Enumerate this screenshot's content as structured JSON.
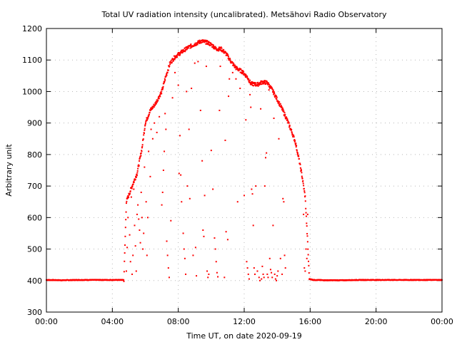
{
  "chart_data": {
    "type": "scatter",
    "title": "Total UV radiation intensity (uncalibrated). Metsähovi Radio Observatory",
    "xlabel": "Time UT, on date 2020-09-19",
    "ylabel": "Arbitrary unit",
    "xlim": [
      0,
      24
    ],
    "ylim": [
      300,
      1200
    ],
    "x_ticks": [
      {
        "value": 0,
        "label": "00:00"
      },
      {
        "value": 4,
        "label": "04:00"
      },
      {
        "value": 8,
        "label": "08:00"
      },
      {
        "value": 12,
        "label": "12:00"
      },
      {
        "value": 16,
        "label": "16:00"
      },
      {
        "value": 20,
        "label": "20:00"
      },
      {
        "value": 24,
        "label": "00:00"
      }
    ],
    "y_ticks": [
      300,
      400,
      500,
      600,
      700,
      800,
      900,
      1000,
      1100,
      1200
    ],
    "grid": true,
    "marker_color": "#ff0000",
    "envelope": [
      {
        "x": 0.0,
        "y": 402
      },
      {
        "x": 1.0,
        "y": 401
      },
      {
        "x": 2.0,
        "y": 402
      },
      {
        "x": 3.0,
        "y": 402
      },
      {
        "x": 4.0,
        "y": 402
      },
      {
        "x": 4.7,
        "y": 402
      },
      {
        "x": 4.85,
        "y": 650
      },
      {
        "x": 5.2,
        "y": 700
      },
      {
        "x": 5.5,
        "y": 740
      },
      {
        "x": 5.8,
        "y": 820
      },
      {
        "x": 6.0,
        "y": 900
      },
      {
        "x": 6.3,
        "y": 940
      },
      {
        "x": 6.6,
        "y": 960
      },
      {
        "x": 7.0,
        "y": 1000
      },
      {
        "x": 7.2,
        "y": 1040
      },
      {
        "x": 7.5,
        "y": 1090
      },
      {
        "x": 7.8,
        "y": 1110
      },
      {
        "x": 8.2,
        "y": 1125
      },
      {
        "x": 8.6,
        "y": 1140
      },
      {
        "x": 9.0,
        "y": 1150
      },
      {
        "x": 9.4,
        "y": 1160
      },
      {
        "x": 9.8,
        "y": 1155
      },
      {
        "x": 10.1,
        "y": 1145
      },
      {
        "x": 10.3,
        "y": 1135
      },
      {
        "x": 10.6,
        "y": 1135
      },
      {
        "x": 10.9,
        "y": 1120
      },
      {
        "x": 11.2,
        "y": 1095
      },
      {
        "x": 11.5,
        "y": 1075
      },
      {
        "x": 11.9,
        "y": 1062
      },
      {
        "x": 12.2,
        "y": 1045
      },
      {
        "x": 12.4,
        "y": 1025
      },
      {
        "x": 12.8,
        "y": 1022
      },
      {
        "x": 13.1,
        "y": 1030
      },
      {
        "x": 13.4,
        "y": 1028
      },
      {
        "x": 13.7,
        "y": 1005
      },
      {
        "x": 14.0,
        "y": 975
      },
      {
        "x": 14.3,
        "y": 945
      },
      {
        "x": 14.6,
        "y": 910
      },
      {
        "x": 14.9,
        "y": 870
      },
      {
        "x": 15.1,
        "y": 840
      },
      {
        "x": 15.3,
        "y": 790
      },
      {
        "x": 15.5,
        "y": 735
      },
      {
        "x": 15.7,
        "y": 665
      },
      {
        "x": 15.85,
        "y": 520
      },
      {
        "x": 15.95,
        "y": 405
      },
      {
        "x": 16.2,
        "y": 402
      },
      {
        "x": 17.0,
        "y": 401
      },
      {
        "x": 18.0,
        "y": 401
      },
      {
        "x": 19.0,
        "y": 402
      },
      {
        "x": 20.0,
        "y": 402
      },
      {
        "x": 21.0,
        "y": 402
      },
      {
        "x": 22.0,
        "y": 402
      },
      {
        "x": 23.0,
        "y": 402
      },
      {
        "x": 24.0,
        "y": 402
      }
    ],
    "cloud_dips": [
      {
        "x": 4.85,
        "y": 430
      },
      {
        "x": 4.9,
        "y": 505
      },
      {
        "x": 4.95,
        "y": 600
      },
      {
        "x": 5.05,
        "y": 545
      },
      {
        "x": 5.1,
        "y": 460
      },
      {
        "x": 5.15,
        "y": 665
      },
      {
        "x": 5.2,
        "y": 420
      },
      {
        "x": 5.25,
        "y": 480
      },
      {
        "x": 5.3,
        "y": 690
      },
      {
        "x": 5.35,
        "y": 575
      },
      {
        "x": 5.4,
        "y": 510
      },
      {
        "x": 5.45,
        "y": 430
      },
      {
        "x": 5.5,
        "y": 610
      },
      {
        "x": 5.55,
        "y": 640
      },
      {
        "x": 5.6,
        "y": 595
      },
      {
        "x": 5.65,
        "y": 560
      },
      {
        "x": 5.7,
        "y": 520
      },
      {
        "x": 5.75,
        "y": 680
      },
      {
        "x": 5.8,
        "y": 600
      },
      {
        "x": 5.85,
        "y": 500
      },
      {
        "x": 5.9,
        "y": 550
      },
      {
        "x": 5.95,
        "y": 760
      },
      {
        "x": 6.05,
        "y": 650
      },
      {
        "x": 6.1,
        "y": 480
      },
      {
        "x": 6.15,
        "y": 600
      },
      {
        "x": 6.2,
        "y": 810
      },
      {
        "x": 6.3,
        "y": 730
      },
      {
        "x": 6.35,
        "y": 880
      },
      {
        "x": 6.45,
        "y": 850
      },
      {
        "x": 6.55,
        "y": 900
      },
      {
        "x": 6.7,
        "y": 870
      },
      {
        "x": 6.85,
        "y": 920
      },
      {
        "x": 7.0,
        "y": 640
      },
      {
        "x": 7.05,
        "y": 680
      },
      {
        "x": 7.1,
        "y": 750
      },
      {
        "x": 7.15,
        "y": 810
      },
      {
        "x": 7.2,
        "y": 930
      },
      {
        "x": 7.25,
        "y": 880
      },
      {
        "x": 7.3,
        "y": 525
      },
      {
        "x": 7.35,
        "y": 480
      },
      {
        "x": 7.4,
        "y": 440
      },
      {
        "x": 7.45,
        "y": 410
      },
      {
        "x": 7.55,
        "y": 590
      },
      {
        "x": 7.65,
        "y": 980
      },
      {
        "x": 7.8,
        "y": 1060
      },
      {
        "x": 8.0,
        "y": 1020
      },
      {
        "x": 8.05,
        "y": 740
      },
      {
        "x": 8.1,
        "y": 860
      },
      {
        "x": 8.15,
        "y": 735
      },
      {
        "x": 8.2,
        "y": 650
      },
      {
        "x": 8.3,
        "y": 550
      },
      {
        "x": 8.35,
        "y": 500
      },
      {
        "x": 8.4,
        "y": 470
      },
      {
        "x": 8.45,
        "y": 420
      },
      {
        "x": 8.5,
        "y": 1000
      },
      {
        "x": 8.55,
        "y": 700
      },
      {
        "x": 8.65,
        "y": 880
      },
      {
        "x": 8.7,
        "y": 660
      },
      {
        "x": 8.8,
        "y": 1010
      },
      {
        "x": 8.9,
        "y": 480
      },
      {
        "x": 9.0,
        "y": 1090
      },
      {
        "x": 9.05,
        "y": 505
      },
      {
        "x": 9.1,
        "y": 415
      },
      {
        "x": 9.2,
        "y": 1095
      },
      {
        "x": 9.35,
        "y": 940
      },
      {
        "x": 9.45,
        "y": 780
      },
      {
        "x": 9.5,
        "y": 560
      },
      {
        "x": 9.55,
        "y": 540
      },
      {
        "x": 9.6,
        "y": 670
      },
      {
        "x": 9.7,
        "y": 1080
      },
      {
        "x": 9.75,
        "y": 430
      },
      {
        "x": 9.8,
        "y": 410
      },
      {
        "x": 9.85,
        "y": 420
      },
      {
        "x": 10.0,
        "y": 813
      },
      {
        "x": 10.1,
        "y": 690
      },
      {
        "x": 10.2,
        "y": 535
      },
      {
        "x": 10.25,
        "y": 500
      },
      {
        "x": 10.3,
        "y": 460
      },
      {
        "x": 10.35,
        "y": 425
      },
      {
        "x": 10.4,
        "y": 412
      },
      {
        "x": 10.5,
        "y": 940
      },
      {
        "x": 10.55,
        "y": 1080
      },
      {
        "x": 10.8,
        "y": 410
      },
      {
        "x": 10.85,
        "y": 845
      },
      {
        "x": 10.9,
        "y": 555
      },
      {
        "x": 11.0,
        "y": 530
      },
      {
        "x": 11.05,
        "y": 985
      },
      {
        "x": 11.1,
        "y": 1040
      },
      {
        "x": 11.3,
        "y": 1060
      },
      {
        "x": 11.5,
        "y": 1040
      },
      {
        "x": 11.6,
        "y": 650
      },
      {
        "x": 11.75,
        "y": 1010
      },
      {
        "x": 12.0,
        "y": 670
      },
      {
        "x": 12.1,
        "y": 910
      },
      {
        "x": 12.15,
        "y": 460
      },
      {
        "x": 12.2,
        "y": 440
      },
      {
        "x": 12.25,
        "y": 420
      },
      {
        "x": 12.3,
        "y": 405
      },
      {
        "x": 12.35,
        "y": 990
      },
      {
        "x": 12.4,
        "y": 950
      },
      {
        "x": 12.45,
        "y": 690
      },
      {
        "x": 12.5,
        "y": 675
      },
      {
        "x": 12.55,
        "y": 575
      },
      {
        "x": 12.6,
        "y": 440
      },
      {
        "x": 12.65,
        "y": 420
      },
      {
        "x": 12.7,
        "y": 700
      },
      {
        "x": 12.8,
        "y": 430
      },
      {
        "x": 12.9,
        "y": 410
      },
      {
        "x": 12.95,
        "y": 400
      },
      {
        "x": 13.0,
        "y": 945
      },
      {
        "x": 13.05,
        "y": 405
      },
      {
        "x": 13.1,
        "y": 445
      },
      {
        "x": 13.15,
        "y": 420
      },
      {
        "x": 13.2,
        "y": 410
      },
      {
        "x": 13.25,
        "y": 700
      },
      {
        "x": 13.3,
        "y": 790
      },
      {
        "x": 13.35,
        "y": 805
      },
      {
        "x": 13.4,
        "y": 420
      },
      {
        "x": 13.45,
        "y": 410
      },
      {
        "x": 13.5,
        "y": 1005
      },
      {
        "x": 13.55,
        "y": 470
      },
      {
        "x": 13.6,
        "y": 435
      },
      {
        "x": 13.65,
        "y": 425
      },
      {
        "x": 13.7,
        "y": 410
      },
      {
        "x": 13.75,
        "y": 575
      },
      {
        "x": 13.8,
        "y": 915
      },
      {
        "x": 13.85,
        "y": 420
      },
      {
        "x": 13.9,
        "y": 405
      },
      {
        "x": 13.95,
        "y": 400
      },
      {
        "x": 14.0,
        "y": 415
      },
      {
        "x": 14.05,
        "y": 430
      },
      {
        "x": 14.1,
        "y": 850
      },
      {
        "x": 14.2,
        "y": 470
      },
      {
        "x": 14.3,
        "y": 420
      },
      {
        "x": 14.35,
        "y": 660
      },
      {
        "x": 14.4,
        "y": 650
      },
      {
        "x": 14.45,
        "y": 480
      },
      {
        "x": 14.5,
        "y": 440
      },
      {
        "x": 15.6,
        "y": 610
      },
      {
        "x": 15.65,
        "y": 440
      },
      {
        "x": 15.7,
        "y": 430
      },
      {
        "x": 15.75,
        "y": 500
      },
      {
        "x": 15.8,
        "y": 470
      },
      {
        "x": 15.85,
        "y": 610
      }
    ]
  }
}
